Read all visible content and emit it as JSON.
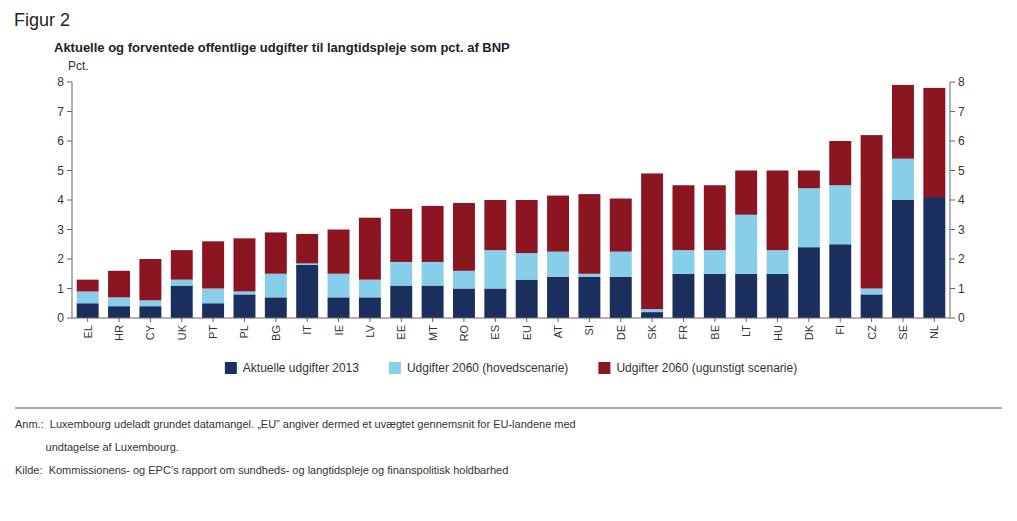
{
  "chart_data": {
    "type": "bar",
    "stacked": true,
    "figure_label": "Figur 2",
    "title": "Aktuelle og forventede offentlige udgifter til langtidspleje som pct. af BNP",
    "ylabel": "Pct.",
    "categories": [
      "EL",
      "HR",
      "CY",
      "UK",
      "PT",
      "PL",
      "BG",
      "IT",
      "IE",
      "LV",
      "EE",
      "MT",
      "RO",
      "ES",
      "EU",
      "AT",
      "SI",
      "DE",
      "SK",
      "FR",
      "BE",
      "LT",
      "HU",
      "DK",
      "FI",
      "CZ",
      "SE",
      "NL"
    ],
    "series": [
      {
        "name": "Aktuelle udgifter 2013",
        "color": "#1b2f5e",
        "values": [
          0.5,
          0.4,
          0.4,
          1.1,
          0.5,
          0.8,
          0.7,
          1.8,
          0.7,
          0.7,
          1.1,
          1.1,
          1.0,
          1.0,
          1.3,
          1.4,
          1.4,
          1.4,
          0.2,
          1.5,
          1.5,
          1.5,
          1.5,
          2.4,
          2.5,
          0.8,
          4.0,
          4.1
        ]
      },
      {
        "name": "Udgifter 2060 (hovedscenarie)",
        "color": "#87ceeb",
        "values": [
          0.4,
          0.3,
          0.2,
          0.2,
          0.5,
          0.1,
          0.8,
          0.05,
          0.8,
          0.6,
          0.8,
          0.8,
          0.6,
          1.3,
          0.9,
          0.85,
          0.1,
          0.85,
          0.1,
          0.8,
          0.8,
          2.0,
          0.8,
          2.0,
          2.0,
          0.2,
          1.4,
          0.0
        ]
      },
      {
        "name": "Udgifter 2060 (ugunstigt scenarie)",
        "color": "#8b1520",
        "values": [
          0.4,
          0.9,
          1.4,
          1.0,
          1.6,
          1.8,
          1.4,
          1.0,
          1.5,
          2.1,
          1.8,
          1.9,
          2.3,
          1.7,
          1.8,
          1.9,
          2.7,
          1.8,
          4.6,
          2.2,
          2.2,
          1.5,
          2.7,
          0.6,
          1.5,
          5.2,
          2.5,
          3.7
        ]
      }
    ],
    "ylim": [
      0,
      8
    ],
    "yticks": [
      0,
      1,
      2,
      3,
      4,
      5,
      6,
      7,
      8
    ],
    "y2lim": [
      0,
      8
    ],
    "y2ticks": [
      0,
      1,
      2,
      3,
      4,
      5,
      6,
      7,
      8
    ],
    "grid": false,
    "legend": "bottom",
    "annotations": [
      "Anm.:  Luxembourg udeladt grundet datamangel. „EU” angiver dermed et uvægtet gennemsnit for EU-landene med",
      "          undtagelse af Luxembourg.",
      "Kilde:  Kommissionens- og EPC’s rapport om sundheds- og langtidspleje og finanspolitisk holdbarhed"
    ]
  }
}
